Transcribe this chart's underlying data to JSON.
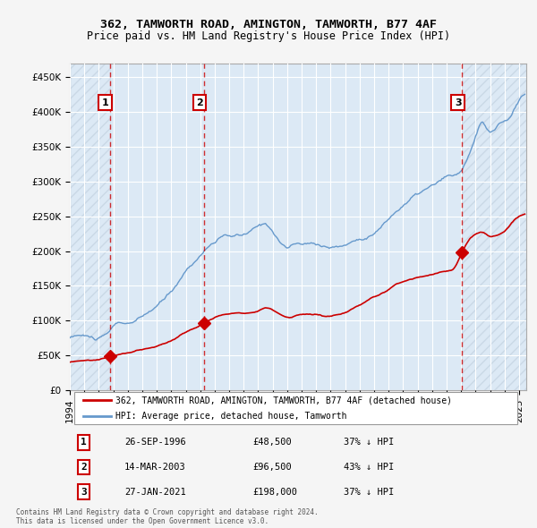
{
  "title": "362, TAMWORTH ROAD, AMINGTON, TAMWORTH, B77 4AF",
  "subtitle": "Price paid vs. HM Land Registry's House Price Index (HPI)",
  "transactions": [
    {
      "date": "1996-09-26",
      "price": 48500,
      "label": "1"
    },
    {
      "date": "2003-03-14",
      "price": 96500,
      "label": "2"
    },
    {
      "date": "2021-01-27",
      "price": 198000,
      "label": "3"
    }
  ],
  "transaction_info": [
    {
      "label": "1",
      "date_str": "26-SEP-1996",
      "price_str": "£48,500",
      "hpi_str": "37% ↓ HPI"
    },
    {
      "label": "2",
      "date_str": "14-MAR-2003",
      "price_str": "£96,500",
      "hpi_str": "43% ↓ HPI"
    },
    {
      "label": "3",
      "date_str": "27-JAN-2021",
      "price_str": "£198,000",
      "hpi_str": "37% ↓ HPI"
    }
  ],
  "legend_line1": "362, TAMWORTH ROAD, AMINGTON, TAMWORTH, B77 4AF (detached house)",
  "legend_line2": "HPI: Average price, detached house, Tamworth",
  "footer": "Contains HM Land Registry data © Crown copyright and database right 2024.\nThis data is licensed under the Open Government Licence v3.0.",
  "price_color": "#cc0000",
  "hpi_color": "#6699cc",
  "background_color": "#dce9f5",
  "outer_bg": "#f0f0f0",
  "hatch_color": "#c0c0c8",
  "ylim": [
    0,
    470000
  ],
  "yticks": [
    0,
    50000,
    100000,
    150000,
    200000,
    250000,
    300000,
    350000,
    400000,
    450000
  ],
  "xstart": 1994.0,
  "xend": 2025.5
}
